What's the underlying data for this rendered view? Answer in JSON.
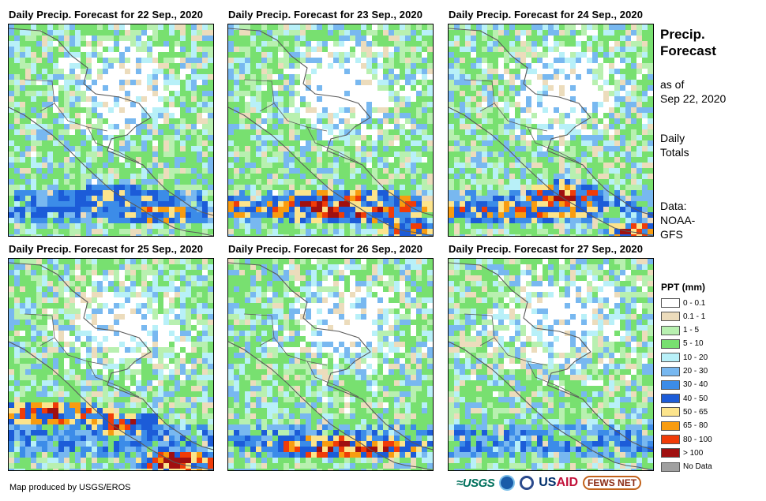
{
  "panels": [
    {
      "title": "Daily Precip. Forecast for 22 Sep., 2020",
      "seed": 11,
      "heavy": [
        [
          0.5,
          0.82,
          0.32,
          0.07,
          0.4
        ],
        [
          0.72,
          0.88,
          0.2,
          0.05,
          0.6
        ]
      ]
    },
    {
      "title": "Daily Precip. Forecast for 23 Sep., 2020",
      "seed": 23,
      "heavy": [
        [
          0.55,
          0.85,
          0.45,
          0.08,
          0.9
        ],
        [
          0.9,
          0.96,
          0.18,
          0.05,
          0.7
        ],
        [
          0.02,
          0.86,
          0.08,
          0.05,
          0.8
        ]
      ]
    },
    {
      "title": "Daily Precip. Forecast for 24 Sep., 2020",
      "seed": 37,
      "heavy": [
        [
          0.3,
          0.87,
          0.45,
          0.05,
          0.7
        ],
        [
          0.55,
          0.8,
          0.2,
          0.07,
          0.85
        ],
        [
          0.9,
          0.97,
          0.15,
          0.05,
          0.8
        ]
      ]
    },
    {
      "title": "Daily Precip. Forecast for 25 Sep., 2020",
      "seed": 41,
      "heavy": [
        [
          0.2,
          0.72,
          0.3,
          0.06,
          0.8
        ],
        [
          0.55,
          0.77,
          0.2,
          0.06,
          0.75
        ],
        [
          0.85,
          0.95,
          0.25,
          0.06,
          0.95
        ]
      ]
    },
    {
      "title": "Daily Precip. Forecast for 26 Sep., 2020",
      "seed": 53,
      "heavy": [
        [
          0.55,
          0.88,
          0.42,
          0.06,
          0.85
        ]
      ]
    },
    {
      "title": "Daily Precip. Forecast for 27 Sep., 2020",
      "seed": 67,
      "heavy": []
    }
  ],
  "sidebar": {
    "title_line1": "Precip.",
    "title_line2": "Forecast",
    "asof_line1": "as of",
    "asof_line2": "Sep 22, 2020",
    "totals_line1": "Daily",
    "totals_line2": "Totals",
    "source_line1": "Data:",
    "source_line2": "NOAA-",
    "source_line3": "GFS"
  },
  "legend": {
    "title": "PPT (mm)",
    "items": [
      {
        "label": "0 - 0.1",
        "color": "#ffffff"
      },
      {
        "label": "0.1 - 1",
        "color": "#ecdcbc"
      },
      {
        "label": "1 - 5",
        "color": "#b8f0b0"
      },
      {
        "label": "5 - 10",
        "color": "#78e070"
      },
      {
        "label": "10 - 20",
        "color": "#b8f0f8"
      },
      {
        "label": "20 - 30",
        "color": "#78b8f0"
      },
      {
        "label": "30 - 40",
        "color": "#3c8ce8"
      },
      {
        "label": "40 - 50",
        "color": "#1c5cd8"
      },
      {
        "label": "50 - 65",
        "color": "#fce48c"
      },
      {
        "label": "65 - 80",
        "color": "#f89c10"
      },
      {
        "label": "80 - 100",
        "color": "#f03c08"
      },
      {
        "label": "> 100",
        "color": "#a01010"
      },
      {
        "label": "No Data",
        "color": "#a0a0a0"
      }
    ]
  },
  "credit": "Map produced by USGS/EROS",
  "logos": {
    "usgs": "≈USGS",
    "usaid_a": "US",
    "usaid_b": "AID",
    "fews": "FEWS NET"
  }
}
